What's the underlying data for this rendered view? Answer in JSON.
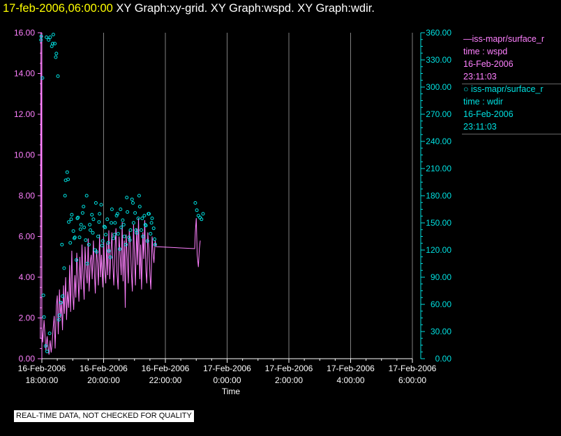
{
  "header": {
    "date": "17-feb-2006,06:00:00",
    "graphs": "XY Graph:xy-grid.  XY Graph:wspd.  XY Graph:wdir."
  },
  "footer_note": "REAL-TIME DATA, NOT CHECKED FOR QUALITY",
  "colors": {
    "wspd": "#ff80ff",
    "wdir": "#00e0e0",
    "grid": "#808080",
    "background": "#000000",
    "date": "#ffff00"
  },
  "legend": [
    {
      "line1": "—iss-mapr/surface_r",
      "line2": "time : wspd",
      "line3": "16-Feb-2006",
      "line4": "23:11:03"
    },
    {
      "line1": "○ iss-mapr/surface_r",
      "line2": "time : wdir",
      "line3": "16-Feb-2006",
      "line4": "23:11:03"
    }
  ],
  "chart_data": {
    "type": "scatter",
    "xlabel": "Time",
    "x_hours_range": [
      18,
      30
    ],
    "x_ticks": [
      {
        "hour": 18,
        "date": "16-Feb-2006",
        "time": "18:00:00"
      },
      {
        "hour": 20,
        "date": "16-Feb-2006",
        "time": "20:00:00"
      },
      {
        "hour": 22,
        "date": "16-Feb-2006",
        "time": "22:00:00"
      },
      {
        "hour": 24,
        "date": "17-Feb-2006",
        "time": "0:00:00"
      },
      {
        "hour": 26,
        "date": "17-Feb-2006",
        "time": "2:00:00"
      },
      {
        "hour": 28,
        "date": "17-Feb-2006",
        "time": "4:00:00"
      },
      {
        "hour": 30,
        "date": "17-Feb-2006",
        "time": "6:00:00"
      }
    ],
    "y_left": {
      "range": [
        0,
        16
      ],
      "ticks": [
        "0.00",
        "2.00",
        "4.00",
        "6.00",
        "8.00",
        "10.00",
        "12.00",
        "14.00",
        "16.00"
      ]
    },
    "y_right": {
      "range": [
        0,
        360
      ],
      "ticks": [
        "0.00",
        "30.00",
        "60.00",
        "90.00",
        "120.00",
        "150.00",
        "180.00",
        "210.00",
        "240.00",
        "270.00",
        "300.00",
        "330.00",
        "360.00"
      ]
    },
    "series": [
      {
        "name": "wspd",
        "style": "line",
        "axis": "left",
        "x": [
          17.95,
          17.97,
          18.0,
          18.03,
          18.07,
          18.1,
          18.13,
          18.17,
          18.2,
          18.23,
          18.27,
          18.3,
          18.33,
          18.37,
          18.4,
          18.43,
          18.47,
          18.5,
          18.53,
          18.57,
          18.6,
          18.63,
          18.67,
          18.7,
          18.73,
          18.77,
          18.8,
          18.83,
          18.87,
          18.9,
          18.93,
          18.97,
          19.0,
          19.03,
          19.07,
          19.1,
          19.13,
          19.17,
          19.2,
          19.23,
          19.27,
          19.3,
          19.33,
          19.37,
          19.4,
          19.43,
          19.47,
          19.5,
          19.53,
          19.57,
          19.6,
          19.63,
          19.67,
          19.7,
          19.73,
          19.77,
          19.8,
          19.83,
          19.87,
          19.9,
          19.93,
          19.97,
          20.0,
          20.03,
          20.07,
          20.1,
          20.13,
          20.17,
          20.2,
          20.23,
          20.27,
          20.3,
          20.33,
          20.37,
          20.4,
          20.43,
          20.47,
          20.5,
          20.53,
          20.57,
          20.6,
          20.63,
          20.67,
          20.7,
          20.73,
          20.77,
          20.8,
          20.83,
          20.87,
          20.9,
          20.93,
          20.97,
          21.0,
          21.03,
          21.07,
          21.1,
          21.13,
          21.17,
          21.2,
          21.23,
          21.27,
          21.3,
          21.33,
          21.37,
          21.4,
          21.43,
          21.47,
          21.5,
          21.53,
          21.57,
          21.6,
          21.63,
          21.67,
          21.7,
          22.95,
          22.97,
          23.0,
          23.03,
          23.07,
          23.1,
          23.13
        ],
        "y": [
          1.0,
          16.0,
          1.6,
          0.8,
          1.9,
          1.2,
          0.4,
          1.1,
          0.6,
          0.2,
          0.9,
          0.3,
          0.7,
          1.6,
          2.1,
          0.5,
          2.6,
          3.1,
          1.2,
          3.4,
          2.0,
          2.8,
          1.4,
          3.6,
          2.2,
          4.0,
          1.9,
          3.3,
          2.5,
          4.6,
          2.3,
          5.3,
          3.1,
          2.4,
          4.1,
          3.0,
          5.2,
          3.9,
          2.8,
          5.0,
          3.4,
          5.6,
          4.2,
          2.9,
          5.5,
          4.4,
          3.7,
          5.9,
          3.3,
          4.8,
          5.1,
          3.9,
          5.8,
          4.3,
          3.2,
          5.4,
          4.7,
          3.6,
          6.1,
          4.0,
          5.1,
          3.5,
          6.0,
          4.5,
          3.7,
          5.7,
          4.1,
          6.3,
          3.9,
          5.0,
          6.2,
          4.6,
          3.6,
          5.5,
          6.4,
          4.3,
          3.4,
          6.0,
          5.2,
          4.1,
          6.7,
          3.8,
          5.8,
          2.5,
          6.1,
          4.8,
          3.7,
          6.3,
          5.5,
          4.2,
          3.3,
          6.6,
          5.0,
          3.6,
          6.4,
          4.6,
          6.9,
          3.9,
          5.6,
          3.4,
          6.2,
          4.9,
          6.8,
          4.3,
          3.7,
          6.2,
          5.3,
          4.1,
          3.4,
          6.0,
          5.2,
          4.7,
          5.8,
          5.5,
          5.4,
          6.2,
          6.9,
          5.1,
          4.5,
          5.4,
          5.8
        ]
      },
      {
        "name": "wdir",
        "style": "circles",
        "axis": "right",
        "x": [
          17.97,
          18.02,
          18.07,
          18.12,
          18.17,
          18.22,
          18.27,
          18.32,
          18.37,
          18.42,
          18.47,
          18.52,
          18.57,
          18.62,
          18.67,
          18.72,
          18.77,
          18.82,
          18.87,
          18.92,
          18.97,
          19.02,
          19.07,
          19.12,
          19.17,
          19.22,
          19.27,
          19.32,
          19.37,
          19.42,
          19.47,
          19.52,
          19.57,
          19.62,
          19.67,
          19.72,
          19.77,
          19.82,
          19.87,
          19.92,
          19.97,
          20.02,
          20.07,
          20.12,
          20.17,
          20.22,
          20.27,
          20.32,
          20.37,
          20.42,
          20.47,
          20.52,
          20.57,
          20.62,
          20.67,
          20.72,
          20.77,
          20.82,
          20.87,
          20.92,
          20.97,
          21.02,
          21.07,
          21.12,
          21.17,
          21.22,
          21.27,
          21.32,
          21.37,
          21.42,
          21.47,
          21.52,
          21.57,
          21.62,
          21.67,
          22.97,
          23.02,
          23.07,
          23.12,
          23.17,
          23.22,
          17.98,
          18.05,
          18.15,
          18.25,
          18.35,
          18.45,
          18.55,
          18.65,
          18.75,
          18.85,
          18.95,
          19.05,
          19.15,
          19.25,
          19.35,
          19.45,
          19.55,
          19.65,
          19.75,
          19.85,
          19.95,
          20.05,
          20.15,
          20.25,
          20.35,
          20.45,
          20.55,
          20.65,
          20.75,
          20.85,
          20.95,
          21.05,
          21.15,
          21.25,
          21.35,
          21.45,
          21.55,
          21.65
        ],
        "y": [
          352,
          310,
          46,
          14,
          8,
          352,
          355,
          345,
          358,
          348,
          337,
          312,
          48,
          62,
          69,
          100,
          197,
          206,
          151,
          128,
          159,
          141,
          134,
          109,
          156,
          134,
          148,
          161,
          145,
          131,
          105,
          126,
          142,
          159,
          154,
          120,
          118,
          135,
          160,
          170,
          130,
          146,
          137,
          154,
          119,
          112,
          165,
          133,
          150,
          158,
          138,
          121,
          145,
          153,
          135,
          126,
          162,
          134,
          142,
          176,
          150,
          161,
          139,
          155,
          168,
          142,
          135,
          158,
          147,
          130,
          160,
          138,
          155,
          144,
          126,
          172,
          164,
          158,
          156,
          154,
          160,
          356,
          70,
          355,
          28,
          348,
          333,
          43,
          126,
          180,
          198,
          154,
          133,
          155,
          143,
          168,
          180,
          148,
          139,
          172,
          151,
          125,
          145,
          128,
          150,
          137,
          160,
          165,
          148,
          178,
          131,
          172,
          142,
          180,
          155,
          148,
          160,
          150,
          132
        ]
      }
    ]
  }
}
